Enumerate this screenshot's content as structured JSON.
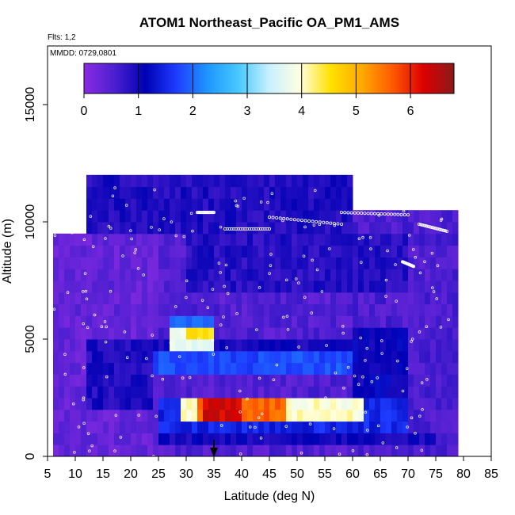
{
  "chart_data": {
    "type": "heatmap",
    "title": "ATOM1 Northeast_Pacific OA_PM1_AMS",
    "annotations": {
      "flights": "Flts: 1,2",
      "dates": "MMDD: 0729,0801"
    },
    "xlabel": "Latitude (deg N)",
    "ylabel": "Altitude (m)",
    "xlim": [
      5,
      85
    ],
    "ylim": [
      0,
      17500
    ],
    "x_ticks": [
      "5",
      "10",
      "15",
      "20",
      "25",
      "30",
      "35",
      "40",
      "45",
      "50",
      "55",
      "60",
      "65",
      "70",
      "75",
      "80",
      "85"
    ],
    "y_ticks": [
      "0",
      "5000",
      "10000",
      "15000"
    ],
    "colorbar": {
      "range": [
        0,
        6.8
      ],
      "ticks": [
        "0",
        "1",
        "2",
        "3",
        "4",
        "5",
        "6"
      ],
      "stops": [
        "#8a2be2",
        "#4b1fd0",
        "#0000b4",
        "#1e3cff",
        "#1e96ff",
        "#46c8ff",
        "#c8f0ff",
        "#ffffe1",
        "#ffe100",
        "#ffaa00",
        "#ff5a00",
        "#dc0000",
        "#8b1a1a"
      ]
    },
    "marker_latitude": 35,
    "regions": [
      {
        "lat": [
          6,
          25
        ],
        "alt": [
          0,
          9500
        ],
        "value": 0.35
      },
      {
        "lat": [
          25,
          60
        ],
        "alt": [
          0,
          11500
        ],
        "value": 0.5
      },
      {
        "lat": [
          60,
          79
        ],
        "alt": [
          0,
          10500
        ],
        "value": 0.55
      },
      {
        "lat": [
          12,
          60
        ],
        "alt": [
          9500,
          12000
        ],
        "value": 0.9
      },
      {
        "lat": [
          12,
          24
        ],
        "alt": [
          2000,
          5000
        ],
        "value": 0.9
      },
      {
        "lat": [
          30,
          70
        ],
        "alt": [
          7000,
          9500
        ],
        "value": 0.85
      },
      {
        "lat": [
          24,
          60
        ],
        "alt": [
          3500,
          4500
        ],
        "value": 1.8
      },
      {
        "lat": [
          24,
          60
        ],
        "alt": [
          4500,
          5000
        ],
        "value": 1.0
      },
      {
        "lat": [
          60,
          70
        ],
        "alt": [
          2500,
          5500
        ],
        "value": 1.1
      },
      {
        "lat": [
          27,
          35
        ],
        "alt": [
          4500,
          5500
        ],
        "value": 3.8
      },
      {
        "lat": [
          27,
          35
        ],
        "alt": [
          5500,
          6000
        ],
        "value": 2.0
      },
      {
        "lat": [
          30,
          35
        ],
        "alt": [
          4800,
          5300
        ],
        "value": 4.5
      },
      {
        "lat": [
          25,
          70
        ],
        "alt": [
          1000,
          2500
        ],
        "value": 1.5
      },
      {
        "lat": [
          29,
          62
        ],
        "alt": [
          1200,
          2300
        ],
        "value": 4.0
      },
      {
        "lat": [
          32,
          48
        ],
        "alt": [
          1300,
          2200
        ],
        "value": 5.6
      },
      {
        "lat": [
          33,
          40
        ],
        "alt": [
          1400,
          2100
        ],
        "value": 6.3
      },
      {
        "lat": [
          25,
          75
        ],
        "alt": [
          500,
          1000
        ],
        "value": 1.0
      }
    ],
    "flight_tracks": [
      {
        "lat": [
          27,
          32
        ],
        "alt": [
          12600,
          12600
        ]
      },
      {
        "lat": [
          45,
          58
        ],
        "alt": [
          10200,
          9900
        ]
      },
      {
        "lat": [
          58,
          70
        ],
        "alt": [
          10400,
          10300
        ]
      },
      {
        "lat": [
          37,
          45
        ],
        "alt": [
          9700,
          9700
        ]
      },
      {
        "lat": [
          72,
          77
        ],
        "alt": [
          9900,
          9600
        ]
      },
      {
        "lat": [
          69,
          71
        ],
        "alt": [
          8300,
          8100
        ]
      },
      {
        "lat": [
          32,
          35
        ],
        "alt": [
          10400,
          10400
        ]
      }
    ]
  }
}
